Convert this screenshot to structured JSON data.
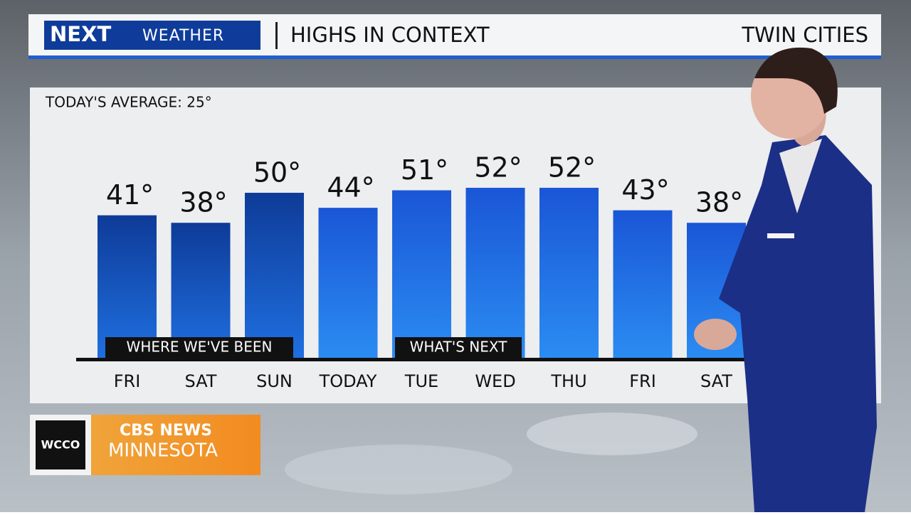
{
  "header": {
    "brand": "NEXT",
    "brand_sub": "WEATHER",
    "title": "HIGHS IN CONTEXT",
    "location": "TWIN CITIES"
  },
  "chart_data": {
    "type": "bar",
    "title": "TODAY'S AVERAGE: 25°",
    "categories": [
      "FRI",
      "SAT",
      "SUN",
      "TODAY",
      "TUE",
      "WED",
      "THU",
      "FRI",
      "SAT"
    ],
    "values": [
      41,
      38,
      50,
      44,
      51,
      52,
      52,
      43,
      38
    ],
    "value_labels": [
      "41°",
      "38°",
      "50°",
      "44°",
      "51°",
      "52°",
      "52°",
      "43°",
      "38°"
    ],
    "color": "#1a5fd6",
    "ylim": [
      -16,
      52
    ],
    "annotations": [
      "WHERE WE'VE BEEN",
      "WHAT'S NEXT"
    ]
  },
  "footer": {
    "station": "WCCO",
    "network": "CBS NEWS",
    "region": "MINNESOTA"
  }
}
